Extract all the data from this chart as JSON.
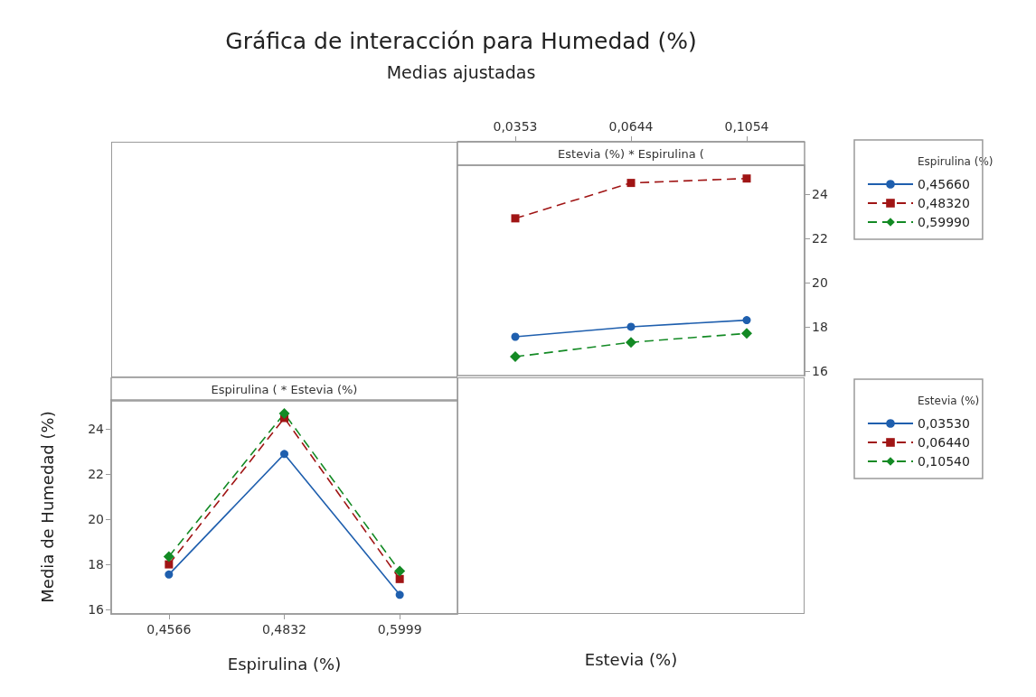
{
  "chart_data": [
    {
      "type": "line",
      "title": "Gráfica de interacción para Humedad (%)",
      "subtitle": "Medias ajustadas",
      "xlabel": "Estevia (%)",
      "legend_title": "Espirulina (%)",
      "annotations": [
        "Estevia (%) * Espirulina ("
      ],
      "categories": [
        "0,0353",
        "0,0644",
        "0,1054"
      ],
      "ylim": [
        15.8,
        25.3
      ],
      "yticks": [
        16,
        18,
        20,
        22,
        24
      ],
      "legend": "right",
      "series": [
        {
          "name": "0,45660",
          "color": "#1f5fae",
          "marker": "circle",
          "line_style": "solid",
          "values": [
            17.55,
            18.0,
            18.3
          ]
        },
        {
          "name": "0,48320",
          "color": "#a01515",
          "marker": "square",
          "line_style": "dashed",
          "values": [
            22.9,
            24.5,
            24.7
          ]
        },
        {
          "name": "0,59990",
          "color": "#138a24",
          "marker": "diamond",
          "line_style": "dashed",
          "values": [
            16.65,
            17.3,
            17.7
          ]
        }
      ]
    },
    {
      "type": "line",
      "xlabel": "Espirulina (%)",
      "ylabel": "Media de Humedad (%)",
      "legend_title": "Estevia (%)",
      "annotations": [
        "Espirulina ( * Estevia (%)"
      ],
      "categories": [
        "0,4566",
        "0,4832",
        "0,5999"
      ],
      "ylim": [
        15.8,
        25.3
      ],
      "yticks": [
        16,
        18,
        20,
        22,
        24
      ],
      "legend": "right",
      "series": [
        {
          "name": "0,03530",
          "color": "#1f5fae",
          "marker": "circle",
          "line_style": "solid",
          "values": [
            17.55,
            22.9,
            16.65
          ]
        },
        {
          "name": "0,06440",
          "color": "#a01515",
          "marker": "square",
          "line_style": "dashed",
          "values": [
            18.0,
            24.5,
            17.35
          ]
        },
        {
          "name": "0,10540",
          "color": "#138a24",
          "marker": "diamond",
          "line_style": "dashed",
          "values": [
            18.35,
            24.7,
            17.7
          ]
        }
      ]
    }
  ]
}
